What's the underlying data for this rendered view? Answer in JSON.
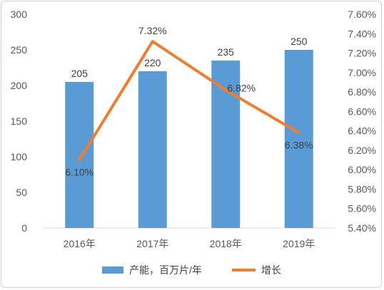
{
  "chart_data": {
    "type": "bar",
    "categories": [
      "2016年",
      "2017年",
      "2018年",
      "2019年"
    ],
    "series": [
      {
        "name": "产能，百万片/年",
        "kind": "bar",
        "axis": "left",
        "values": [
          205,
          220,
          235,
          250
        ],
        "labels": [
          "205",
          "220",
          "235",
          "250"
        ],
        "color": "#5b9bd5"
      },
      {
        "name": "增长",
        "kind": "line",
        "axis": "right",
        "values": [
          6.1,
          7.32,
          6.82,
          6.38
        ],
        "labels": [
          "6.10%",
          "7.32%",
          "6.82%",
          "6.38%"
        ],
        "color": "#ed7d31"
      }
    ],
    "y_left": {
      "range": [
        0,
        300
      ],
      "ticks": [
        "0",
        "50",
        "100",
        "150",
        "200",
        "250",
        "300"
      ]
    },
    "y_right": {
      "range": [
        5.4,
        7.6
      ],
      "ticks": [
        "5.40%",
        "5.60%",
        "5.80%",
        "6.00%",
        "6.20%",
        "6.40%",
        "6.60%",
        "6.80%",
        "7.00%",
        "7.20%",
        "7.40%",
        "7.60%"
      ]
    },
    "grid": false,
    "legend_position": "bottom"
  }
}
